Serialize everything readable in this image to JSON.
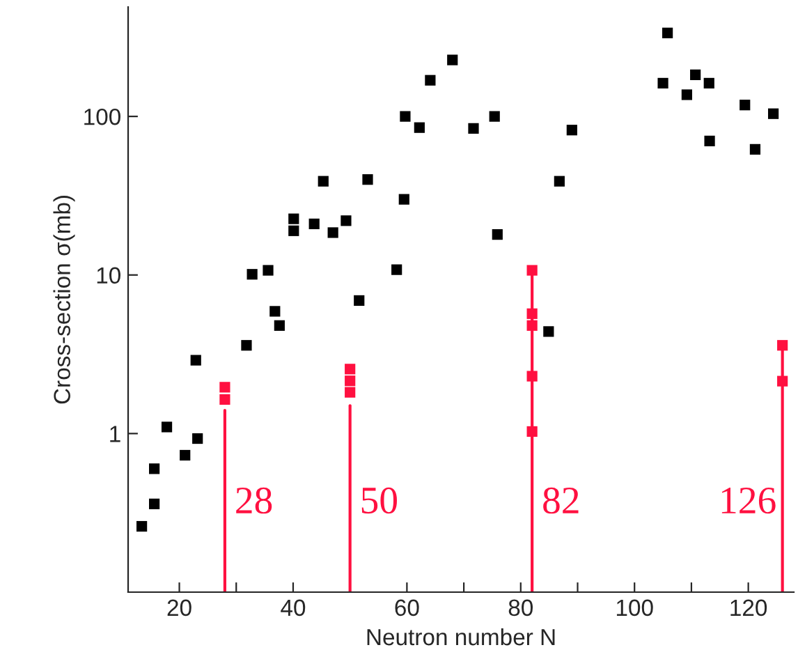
{
  "chart_data": {
    "type": "scatter",
    "xlabel": "Neutron number N",
    "ylabel": "Cross-section σ(mb)",
    "log": "y",
    "marker": "square",
    "grid": false,
    "legend": false,
    "xlim": [
      11,
      128
    ],
    "ylim": [
      0.1,
      490
    ],
    "xticks": [
      20,
      {
        "value": 30,
        "label": null
      },
      40,
      {
        "value": 50,
        "label": null
      },
      60,
      {
        "value": 70,
        "label": null
      },
      80,
      {
        "value": 90,
        "label": null
      },
      100,
      {
        "value": 110,
        "label": null
      },
      120
    ],
    "yticks": [
      1,
      10,
      100
    ],
    "series": [
      {
        "color": "#000000",
        "x": [
          13.4,
          15.6,
          15.6,
          17.8,
          21.0,
          23.2,
          22.9,
          31.8,
          32.8,
          35.6,
          36.8,
          37.6,
          51.6,
          58.2,
          40.1,
          40.1,
          43.7,
          47.0,
          49.3,
          45.3,
          53.1,
          59.5,
          59.7,
          62.2,
          64.1,
          68.0,
          71.7,
          75.4,
          89.0,
          86.8,
          75.9,
          84.9,
          105.8,
          105.0,
          110.7,
          109.2,
          113.1,
          113.2,
          119.4,
          121.2,
          124.4
        ],
        "values": [
          0.26,
          0.36,
          0.6,
          1.1,
          0.73,
          0.93,
          2.9,
          3.6,
          10.1,
          10.7,
          5.9,
          4.8,
          6.9,
          10.8,
          22.6,
          19,
          21,
          18.5,
          22,
          39,
          40,
          30,
          100,
          85,
          169,
          227,
          84,
          100,
          82,
          39,
          18,
          4.4,
          336,
          162,
          183,
          137,
          162,
          70,
          118,
          62,
          104
        ]
      },
      {
        "color": "#ff1040",
        "x": [
          28,
          28,
          50,
          50,
          50,
          82,
          82,
          82,
          82,
          82,
          126,
          126
        ],
        "values": [
          1.96,
          1.64,
          2.55,
          2.15,
          1.82,
          10.7,
          5.7,
          4.8,
          2.3,
          1.03,
          3.6,
          2.14
        ]
      },
      {
        "type": "line",
        "color": "#ff1040",
        "marker": "none",
        "x": [
          28,
          28
        ],
        "values": [
          0.1,
          1.4
        ]
      },
      {
        "type": "line",
        "color": "#ff1040",
        "marker": "none",
        "x": [
          50,
          50
        ],
        "values": [
          0.1,
          1.5
        ]
      },
      {
        "type": "line",
        "color": "#ff1040",
        "marker": "none",
        "x": [
          82,
          82
        ],
        "values": [
          0.1,
          10.7
        ]
      },
      {
        "type": "line",
        "color": "#ff1040",
        "marker": "none",
        "x": [
          126,
          126
        ],
        "values": [
          0.1,
          3.6
        ]
      }
    ],
    "annotations": [
      {
        "text": "28",
        "x": 28,
        "y": 0.36
      },
      {
        "text": "50",
        "x": 50,
        "y": 0.36
      },
      {
        "text": "82",
        "x": 82,
        "y": 0.36
      },
      {
        "text": "126",
        "x": 126,
        "y": 0.36
      }
    ]
  }
}
